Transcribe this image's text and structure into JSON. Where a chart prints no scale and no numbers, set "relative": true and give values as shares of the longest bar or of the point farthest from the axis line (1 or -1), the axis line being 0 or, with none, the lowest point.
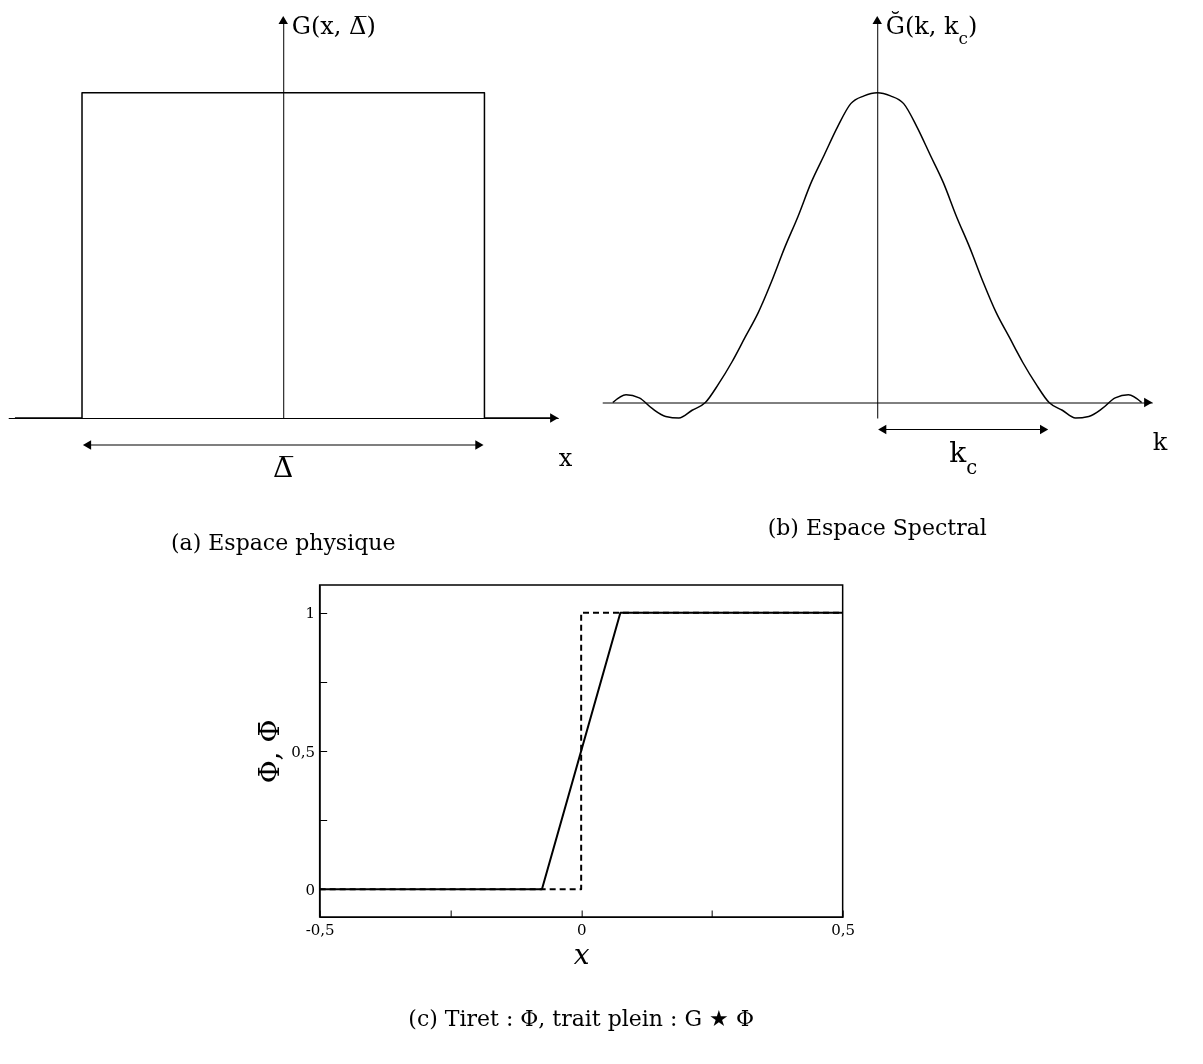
{
  "chart_data": [
    {
      "type": "step",
      "relative": true,
      "title": "(a) Espace physique",
      "xlabel": "x",
      "ylabel": "G(x, Δ̅)",
      "annotations": [
        "Δ̅"
      ],
      "color": "#000000",
      "categories": [
        null,
        null,
        null,
        null,
        null,
        null,
        null,
        null,
        null
      ],
      "values": [
        0,
        1,
        1,
        1,
        1,
        1,
        1,
        0,
        0
      ]
    },
    {
      "type": "line",
      "relative": true,
      "title": "(b) Espace Spectral",
      "xlabel": "k",
      "ylabel": "Ğ(k, k$_{c}$)",
      "annotations": [
        "k$_{c}$"
      ],
      "color": "#000000",
      "categories": [
        null,
        null,
        null,
        null,
        null,
        null,
        null,
        null,
        null,
        null,
        null,
        null,
        null,
        null,
        null,
        null,
        null,
        null,
        null,
        null,
        null,
        null,
        null,
        null,
        null,
        null,
        null,
        null,
        null,
        null,
        null,
        null,
        null,
        null,
        null,
        null,
        null,
        null,
        null,
        null,
        null
      ],
      "values": [
        0,
        0.025,
        0.015,
        -0.02,
        -0.045,
        -0.05,
        -0.025,
        0,
        0.06,
        0.13,
        0.21,
        0.29,
        0.39,
        0.5,
        0.6,
        0.71,
        0.8,
        0.89,
        0.965,
        0.99,
        1,
        0.99,
        0.965,
        0.89,
        0.8,
        0.71,
        0.6,
        0.5,
        0.39,
        0.29,
        0.21,
        0.13,
        0.06,
        0,
        -0.025,
        -0.05,
        -0.045,
        -0.02,
        0.015,
        0.025,
        0
      ]
    },
    {
      "type": "line",
      "title": "(c) Tiret : Φ, trait plein : G ★ Φ",
      "xlabel": "x",
      "ylabel": "Φ, Φ̄",
      "xlim": [
        -0.5,
        0.5
      ],
      "xticks": [
        {
          "value": -0.5,
          "label": "-0,5"
        },
        {
          "value": -0.25,
          "label": null
        },
        0,
        {
          "value": 0.25,
          "label": null
        },
        {
          "value": 0.5,
          "label": "0,5"
        }
      ],
      "ylim": [
        -0.1,
        1.1
      ],
      "yticks": [
        0,
        {
          "value": 0.25,
          "label": null
        },
        {
          "value": 0.5,
          "label": "0,5"
        },
        {
          "value": 0.75,
          "label": null
        },
        1
      ],
      "series": [
        {
          "color": "#000000",
          "line_style": "dashed",
          "x": [
            -0.5,
            0,
            0,
            0.5
          ],
          "values": [
            0,
            0,
            1,
            1
          ]
        },
        {
          "color": "#000000",
          "line_style": "solid",
          "x": [
            -0.5,
            -0.075,
            0.075,
            0.5
          ],
          "values": [
            0,
            0,
            1,
            1
          ]
        }
      ]
    }
  ]
}
